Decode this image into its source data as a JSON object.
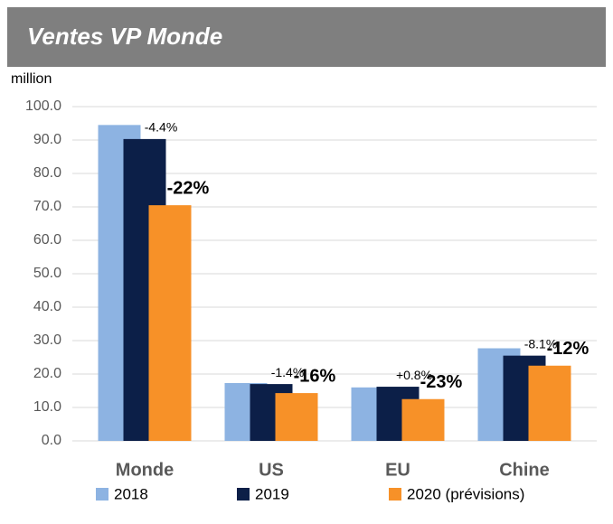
{
  "chart_data": {
    "type": "bar",
    "title": "Ventes VP Monde",
    "y_label": "million",
    "categories": [
      "Monde",
      "US",
      "EU",
      "Chine"
    ],
    "series": [
      {
        "name": "2018",
        "color": "#8db3e2",
        "values": [
          94.5,
          17.3,
          16.0,
          27.7
        ]
      },
      {
        "name": "2019",
        "color": "#0c1f48",
        "values": [
          90.3,
          17.0,
          16.2,
          25.5
        ]
      },
      {
        "name": "2020 (prévisions)",
        "color": "#f79128",
        "values": [
          70.5,
          14.3,
          12.5,
          22.5
        ]
      }
    ],
    "annotations": [
      {
        "text": "-4.4%",
        "category": "Monde",
        "series": "2019"
      },
      {
        "text": "-22%",
        "category": "Monde",
        "series": "2020 (prévisions)"
      },
      {
        "text": "-1.4%",
        "category": "US",
        "series": "2019"
      },
      {
        "text": "-16%",
        "category": "US",
        "series": "2020 (prévisions)"
      },
      {
        "text": "+0.8%",
        "category": "EU",
        "series": "2019"
      },
      {
        "text": "-23%",
        "category": "EU",
        "series": "2020 (prévisions)"
      },
      {
        "text": "-8.1%",
        "category": "Chine",
        "series": "2019"
      },
      {
        "text": "-12%",
        "category": "Chine",
        "series": "2020 (prévisions)"
      }
    ],
    "ylim": [
      0,
      100
    ],
    "yticks": [
      {
        "value": 0,
        "label": "0.0"
      },
      {
        "value": 10,
        "label": "10.0"
      },
      {
        "value": 20,
        "label": "20.0"
      },
      {
        "value": 30,
        "label": "30.0"
      },
      {
        "value": 40,
        "label": "40.0"
      },
      {
        "value": 50,
        "label": "50.0"
      },
      {
        "value": 60,
        "label": "60.0"
      },
      {
        "value": 70,
        "label": "70.0"
      },
      {
        "value": 80,
        "label": "80.0"
      },
      {
        "value": 90,
        "label": "90.0"
      },
      {
        "value": 100,
        "label": "100.0"
      }
    ],
    "grid": true,
    "legend": "bottom"
  }
}
